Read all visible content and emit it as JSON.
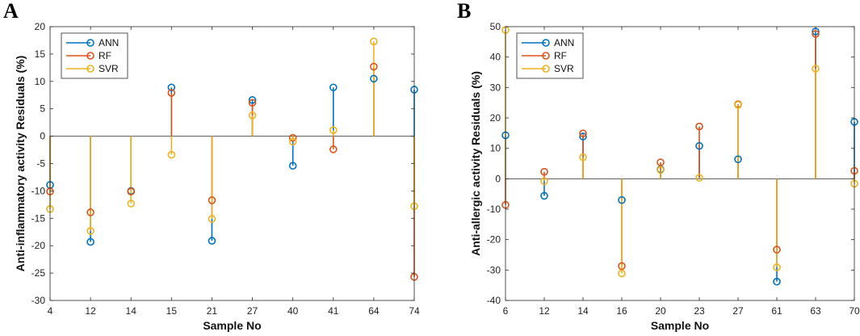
{
  "chart_data": [
    {
      "type": "stem",
      "panel_letter": "A",
      "xlabel": "Sample No",
      "ylabel": "Anti-inflammatory activity Residuals (%)",
      "ylim": [
        -30,
        20
      ],
      "yticks": [
        -30,
        -25,
        -20,
        -15,
        -10,
        -5,
        0,
        5,
        10,
        15,
        20
      ],
      "categories": [
        "4",
        "12",
        "14",
        "15",
        "21",
        "27",
        "40",
        "41",
        "64",
        "74"
      ],
      "legend_position": "top-left",
      "series": [
        {
          "name": "ANN",
          "color": "#0072BD",
          "values": [
            -8.9,
            -19.3,
            -10.0,
            8.9,
            -19.1,
            6.6,
            -5.4,
            8.9,
            10.5,
            8.5
          ]
        },
        {
          "name": "RF",
          "color": "#D95319",
          "values": [
            -10.1,
            -13.9,
            -10.1,
            7.9,
            -11.7,
            6.1,
            -0.3,
            -2.4,
            12.7,
            -25.7
          ]
        },
        {
          "name": "SVR",
          "color": "#EDB120",
          "values": [
            -13.3,
            -17.3,
            -12.3,
            -3.4,
            -15.1,
            3.8,
            -1.0,
            1.1,
            17.3,
            -12.8
          ]
        }
      ]
    },
    {
      "type": "stem",
      "panel_letter": "B",
      "xlabel": "Sample No",
      "ylabel": "Anti-allergic activity Residuals (%)",
      "ylim": [
        -40,
        50
      ],
      "yticks": [
        -40,
        -30,
        -20,
        -10,
        0,
        10,
        20,
        30,
        40,
        50
      ],
      "categories": [
        "6",
        "12",
        "14",
        "16",
        "20",
        "23",
        "27",
        "61",
        "63",
        "70"
      ],
      "legend_position": "top-left",
      "series": [
        {
          "name": "ANN",
          "color": "#0072BD",
          "values": [
            14.3,
            -5.6,
            13.9,
            -7.0,
            3.1,
            10.8,
            6.4,
            -33.8,
            48.4,
            18.7
          ]
        },
        {
          "name": "RF",
          "color": "#D95319",
          "values": [
            -8.6,
            2.3,
            14.9,
            -28.7,
            5.4,
            17.2,
            24.5,
            -23.3,
            47.6,
            2.6
          ]
        },
        {
          "name": "SVR",
          "color": "#EDB120",
          "values": [
            48.9,
            -0.8,
            7.1,
            -31.1,
            2.9,
            0.3,
            24.3,
            -29.1,
            36.2,
            -1.6
          ]
        }
      ]
    }
  ]
}
